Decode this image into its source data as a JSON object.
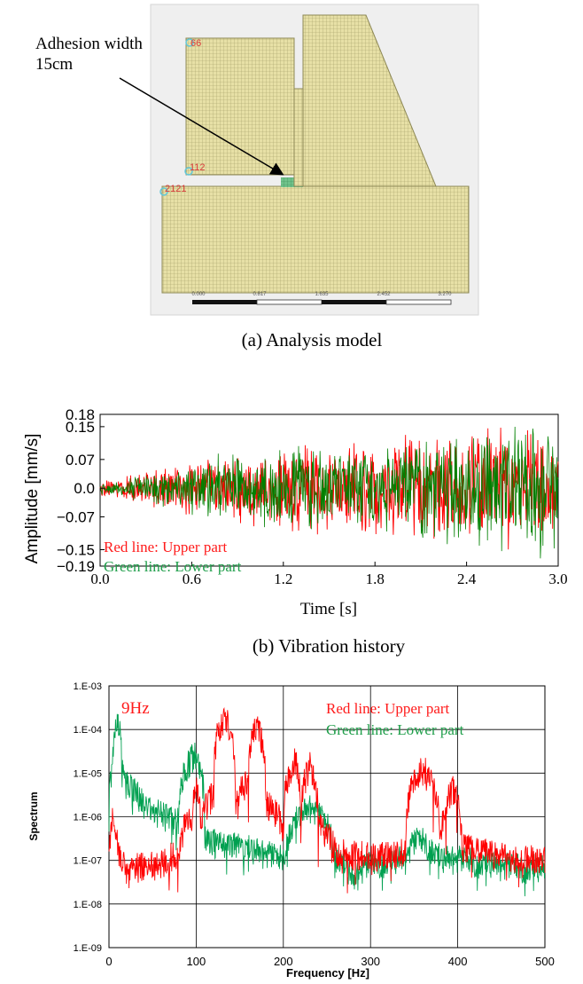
{
  "panel_a": {
    "caption": "(a) Analysis model",
    "annotation_line1": "Adhesion width",
    "annotation_line2": "15cm",
    "node_labels": [
      "66",
      "112",
      "2121"
    ],
    "scale_ticks": [
      "0.000",
      "0.817",
      "1.635",
      "2.452",
      "3.270"
    ],
    "colors": {
      "mesh_fill": "#e7e0a6",
      "mesh_line": "#9f9a63",
      "adhesion": "#6fc28a",
      "node_label": "#d83a3a",
      "node_marker": "#62c6d8",
      "frame": "#cfcfcf"
    }
  },
  "panel_b": {
    "caption": "(b) Vibration history",
    "ylabel": "Amplitude   [mm/s]",
    "xlabel": "Time [s]",
    "legend_red": "Red line: Upper part",
    "legend_green": "Green line: Lower part"
  },
  "panel_c": {
    "ylabel": "Spectrum",
    "xlabel": "Frequency [Hz]",
    "peak_label": "9Hz",
    "legend_red": "Red line: Upper part",
    "legend_green": "Green line: Lower part"
  },
  "chart_data": [
    {
      "type": "line",
      "title": "",
      "xlabel": "Time [s]",
      "ylabel": "Amplitude   [mm/s]",
      "xlim": [
        0.0,
        3.0
      ],
      "ylim": [
        -0.19,
        0.18
      ],
      "x_ticks": [
        "0.0",
        "0.6",
        "1.2",
        "1.8",
        "2.4",
        "3.0"
      ],
      "y_ticks": [
        "0.18",
        "0.15",
        "0.07",
        "0.0",
        "−0.07",
        "−0.15",
        "−0.19"
      ],
      "y_tick_values": [
        0.18,
        0.15,
        0.07,
        0.0,
        -0.07,
        -0.15,
        -0.19
      ],
      "grid": false,
      "series": [
        {
          "name": "Red line: Upper part",
          "color": "#ff0000",
          "envelope_t": [
            0.0,
            0.3,
            0.6,
            0.9,
            1.2,
            1.5,
            1.8,
            2.1,
            2.4,
            2.7,
            3.0
          ],
          "envelope_amp": [
            0.02,
            0.05,
            0.07,
            0.1,
            0.12,
            0.12,
            0.13,
            0.14,
            0.16,
            0.16,
            0.15
          ]
        },
        {
          "name": "Green line: Lower part",
          "color": "#008000",
          "envelope_t": [
            0.0,
            0.3,
            0.6,
            0.9,
            1.2,
            1.5,
            1.8,
            2.1,
            2.4,
            2.7,
            3.0
          ],
          "envelope_amp": [
            0.02,
            0.04,
            0.07,
            0.1,
            0.12,
            0.11,
            0.12,
            0.13,
            0.15,
            0.17,
            0.18
          ]
        }
      ]
    },
    {
      "type": "line",
      "title": "",
      "xlabel": "Frequency [Hz]",
      "ylabel": "Spectrum",
      "xlim": [
        0,
        500
      ],
      "ylim": [
        1e-09,
        0.001
      ],
      "yscale": "log",
      "x_ticks": [
        "0",
        "100",
        "200",
        "300",
        "400",
        "500"
      ],
      "y_ticks": [
        "1.E-03",
        "1.E-04",
        "1.E-05",
        "1.E-06",
        "1.E-07",
        "1.E-08",
        "1.E-09"
      ],
      "grid": true,
      "series": [
        {
          "name": "Red line: Upper part",
          "color": "#ff0000",
          "x": [
            0,
            5,
            10,
            20,
            40,
            60,
            80,
            95,
            100,
            105,
            120,
            133,
            145,
            160,
            168,
            180,
            200,
            214,
            220,
            231,
            240,
            260,
            300,
            340,
            355,
            362,
            380,
            395,
            405,
            450,
            500
          ],
          "y": [
            1e-07,
            1e-06,
            1.5e-07,
            6e-08,
            7e-08,
            8e-08,
            1.5e-07,
            1e-06,
            5e-06,
            8e-07,
            3e-06,
            0.0002,
            2e-06,
            6e-06,
            0.00013,
            2e-06,
            5e-07,
            2e-05,
            4e-07,
            1.5e-05,
            6e-07,
            1.5e-07,
            1.2e-07,
            1.5e-07,
            1e-05,
            1.2e-05,
            2e-07,
            4e-06,
            2e-07,
            1.2e-07,
            9e-08
          ]
        },
        {
          "name": "Green line: Lower part",
          "color": "#00a050",
          "x": [
            0,
            5,
            9,
            15,
            20,
            40,
            60,
            80,
            98,
            110,
            130,
            150,
            168,
            200,
            231,
            260,
            280,
            300,
            340,
            355,
            380,
            400,
            450,
            500
          ],
          "y": [
            1e-06,
            2e-05,
            0.00016,
            1e-05,
            5e-06,
            2e-06,
            1e-06,
            7e-07,
            2.5e-05,
            3e-07,
            2e-07,
            2e-07,
            1.5e-07,
            1e-07,
            1.5e-06,
            1.2e-07,
            3e-08,
            8e-08,
            1e-07,
            3e-07,
            1e-07,
            1e-07,
            7e-08,
            6e-08
          ]
        }
      ]
    }
  ]
}
